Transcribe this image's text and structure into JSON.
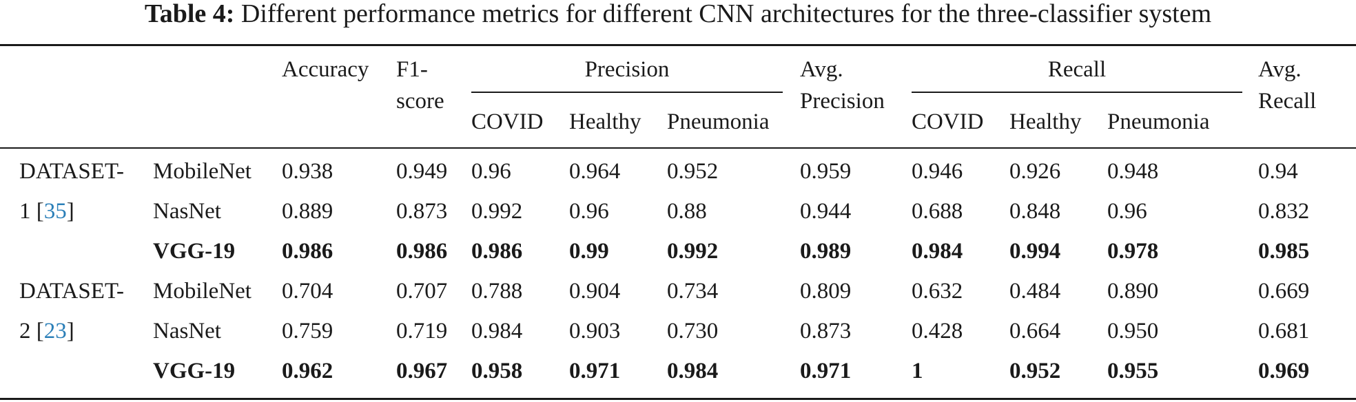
{
  "caption": {
    "label": "Table 4:",
    "text": "Different performance metrics for different CNN architectures for the three-classifier system"
  },
  "header": {
    "accuracy": "Accuracy",
    "f1_line1": "F1-",
    "f1_line2": "score",
    "precision_group": "Precision",
    "avg_precision_line1": "Avg.",
    "avg_precision_line2": "Precision",
    "recall_group": "Recall",
    "avg_recall_line1": "Avg.",
    "avg_recall_line2": "Recall",
    "sub": [
      "COVID",
      "Healthy",
      "Pneumonia",
      "COVID",
      "Healthy",
      "Pneumonia"
    ]
  },
  "datasets": [
    {
      "line1": "DATASET-",
      "line2_num": "1",
      "ref": "35",
      "rows": [
        {
          "model": "MobileNet",
          "bold": false,
          "values": [
            "0.938",
            "0.949",
            "0.96",
            "0.964",
            "0.952",
            "0.959",
            "0.946",
            "0.926",
            "0.948",
            "0.94"
          ]
        },
        {
          "model": "NasNet",
          "bold": false,
          "values": [
            "0.889",
            "0.873",
            "0.992",
            "0.96",
            "0.88",
            "0.944",
            "0.688",
            "0.848",
            "0.96",
            "0.832"
          ]
        },
        {
          "model": "VGG-19",
          "bold": true,
          "values": [
            "0.986",
            "0.986",
            "0.986",
            "0.99",
            "0.992",
            "0.989",
            "0.984",
            "0.994",
            "0.978",
            "0.985"
          ]
        }
      ]
    },
    {
      "line1": "DATASET-",
      "line2_num": "2",
      "ref": "23",
      "rows": [
        {
          "model": "MobileNet",
          "bold": false,
          "values": [
            "0.704",
            "0.707",
            "0.788",
            "0.904",
            "0.734",
            "0.809",
            "0.632",
            "0.484",
            "0.890",
            "0.669"
          ]
        },
        {
          "model": "NasNet",
          "bold": false,
          "values": [
            "0.759",
            "0.719",
            "0.984",
            "0.903",
            "0.730",
            "0.873",
            "0.428",
            "0.664",
            "0.950",
            "0.681"
          ]
        },
        {
          "model": "VGG-19",
          "bold": true,
          "values": [
            "0.962",
            "0.967",
            "0.958",
            "0.971",
            "0.984",
            "0.971",
            "1",
            "0.952",
            "0.955",
            "0.969"
          ]
        }
      ]
    }
  ]
}
